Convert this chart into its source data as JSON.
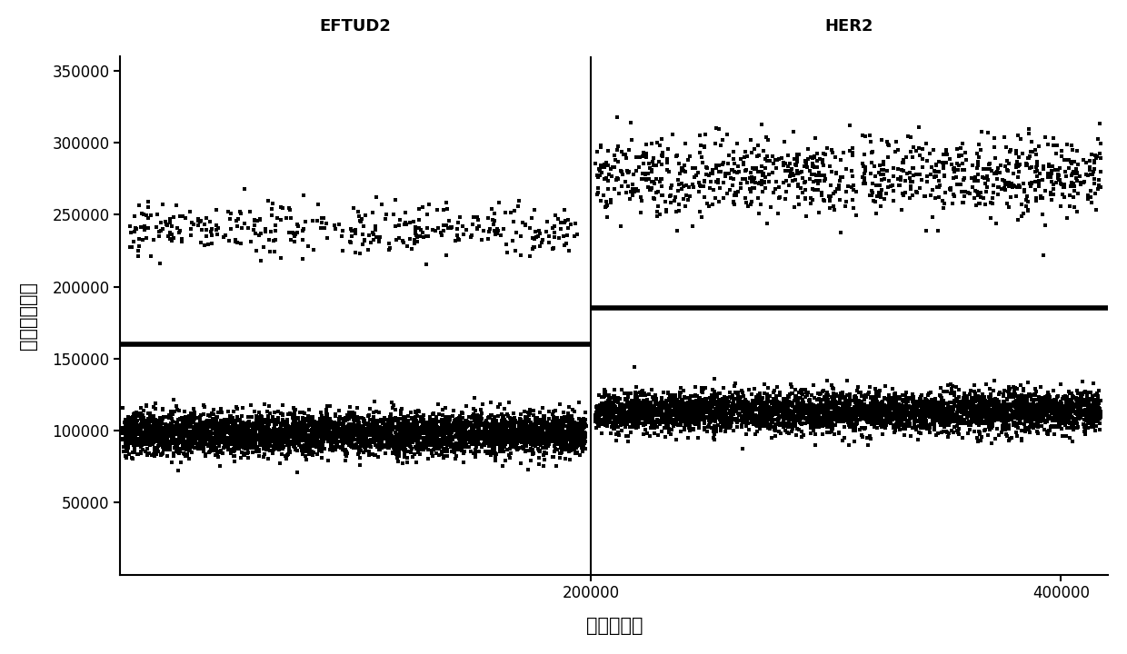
{
  "title_left": "EFTUD2",
  "title_right": "HER2",
  "xlabel": "检测液滴数",
  "ylabel": "荧光信号强度",
  "xlim": [
    0,
    420000
  ],
  "ylim": [
    0,
    360000
  ],
  "xticks": [
    200000,
    400000
  ],
  "yticks": [
    50000,
    100000,
    150000,
    200000,
    250000,
    300000,
    350000
  ],
  "eftud2_threshold": 160000,
  "her2_threshold": 185000,
  "divider_x": 200000,
  "eftud2_upper_mean": 240000,
  "eftud2_upper_spread": 9000,
  "eftud2_upper_n": 380,
  "eftud2_lower_mean": 98000,
  "eftud2_lower_spread": 7000,
  "eftud2_lower_n": 4500,
  "her2_upper_mean": 277000,
  "her2_upper_spread": 14000,
  "her2_upper_n": 1000,
  "her2_lower_mean": 113000,
  "her2_lower_spread": 7000,
  "her2_lower_n": 4000,
  "dot_color": "#000000",
  "dot_size": 5,
  "dot_marker": "s",
  "threshold_linewidth": 4,
  "background_color": "#ffffff",
  "seed": 42,
  "font_family": "SimHei"
}
